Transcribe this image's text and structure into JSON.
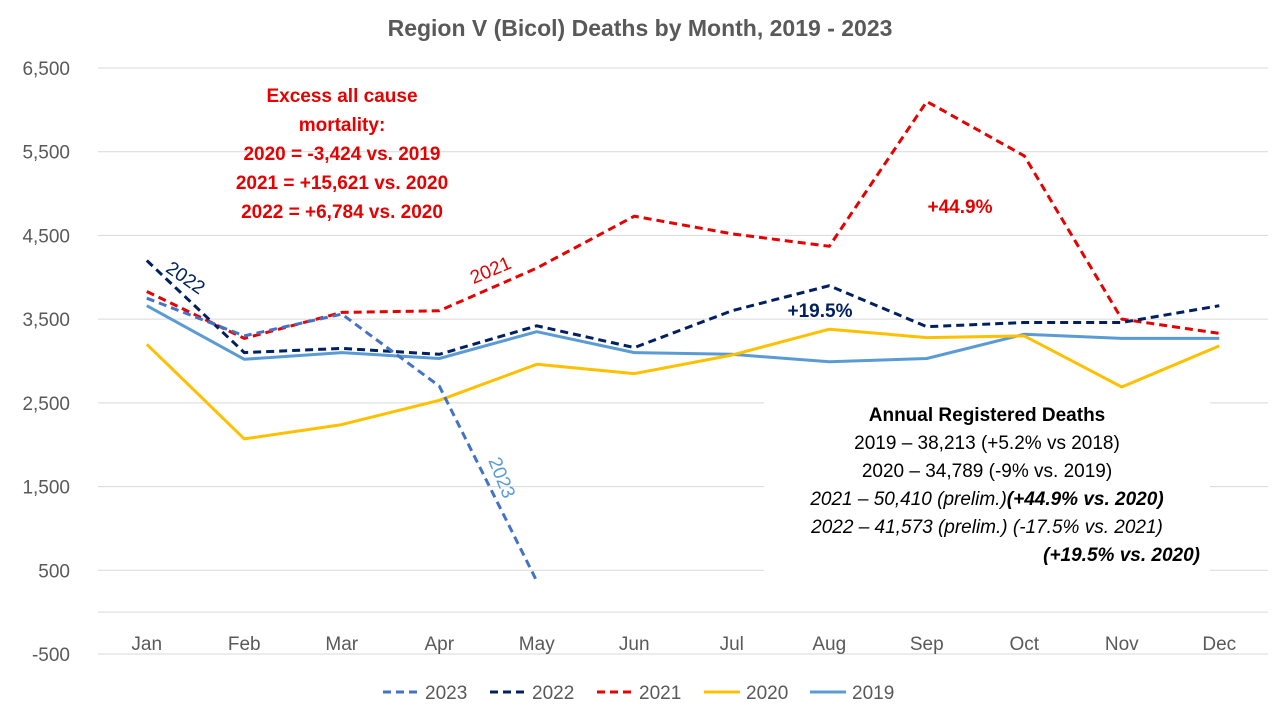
{
  "chart_data": {
    "type": "line",
    "title": "Region V (Bicol) Deaths by Month, 2019 - 2023",
    "categories": [
      "Jan",
      "Feb",
      "Mar",
      "Apr",
      "May",
      "Jun",
      "Jul",
      "Aug",
      "Sep",
      "Oct",
      "Nov",
      "Dec"
    ],
    "y_ticks": [
      "6,500",
      "5,500",
      "4,500",
      "3,500",
      "2,500",
      "1,500",
      "500",
      "-500"
    ],
    "ylim": [
      -500,
      6500
    ],
    "grid": true,
    "legend_position": "bottom",
    "series": [
      {
        "name": "2023",
        "color": "#4472c4",
        "dash": true,
        "values": [
          3750,
          3300,
          3560,
          2700,
          370,
          null,
          null,
          null,
          null,
          null,
          null,
          null
        ]
      },
      {
        "name": "2022",
        "color": "#002060",
        "dash": true,
        "values": [
          4200,
          3100,
          3150,
          3080,
          3420,
          3160,
          3600,
          3900,
          3410,
          3460,
          3460,
          3660
        ]
      },
      {
        "name": "2021",
        "color": "#e60000",
        "dash": true,
        "values": [
          3830,
          3270,
          3580,
          3600,
          4110,
          4730,
          4520,
          4370,
          6100,
          5450,
          3500,
          3330
        ]
      },
      {
        "name": "2020",
        "color": "#ffc000",
        "dash": false,
        "values": [
          3200,
          2070,
          2240,
          2530,
          2960,
          2850,
          3070,
          3380,
          3280,
          3300,
          2690,
          3180
        ]
      },
      {
        "name": "2019",
        "color": "#5b9bd5",
        "dash": false,
        "values": [
          3660,
          3020,
          3100,
          3030,
          3350,
          3100,
          3080,
          2990,
          3030,
          3320,
          3270,
          3270
        ]
      }
    ],
    "annotations": {
      "excess_lines": [
        "Excess all cause",
        "mortality:",
        "2020 = -3,424 vs. 2019",
        "2021 = +15,621 vs. 2020",
        "2022 = +6,784 vs. 2020"
      ],
      "pct_2021": "+44.9%",
      "pct_2022": "+19.5%",
      "label_2021": "2021",
      "label_2022": "2022",
      "label_2023": "2023",
      "annual": {
        "heading": "Annual Registered Deaths",
        "line1": "2019 – 38,213 (+5.2% vs 2018)",
        "line2": "2020 – 34,789 (-9% vs. 2019)",
        "line3a": "2021 – 50,410 (prelim.)",
        "line3b": "(+44.9% vs. 2020)",
        "line4": "2022 – 41,573 (prelim.) (-17.5% vs. 2021)",
        "line5": "(+19.5% vs. 2020)"
      }
    }
  }
}
